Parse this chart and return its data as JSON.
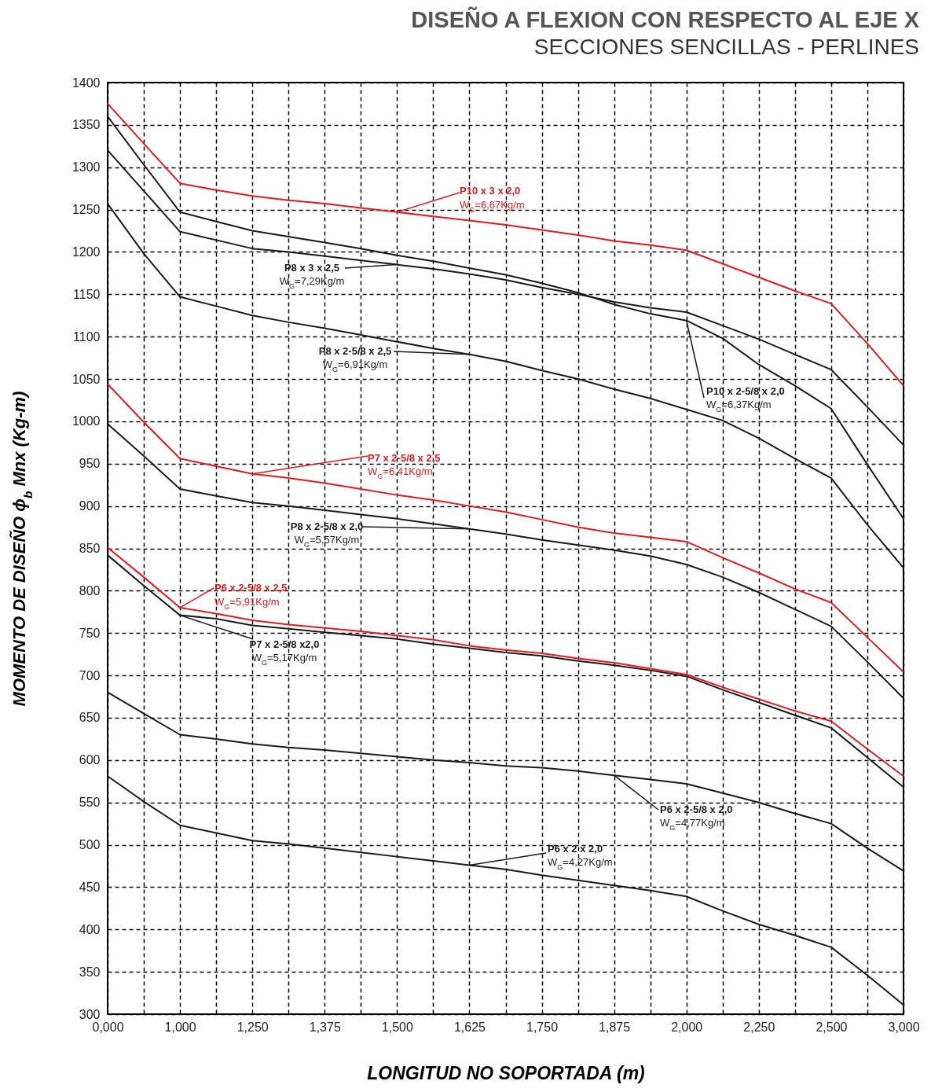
{
  "chart_data": {
    "type": "line",
    "title": "DISEÑO A FLEXION CON RESPECTO AL EJE X",
    "subtitle": "SECCIONES SENCILLAS - PERLINES",
    "xlabel": "LONGITUD NO SOPORTADA (m)",
    "ylabel": "MOMENTO DE DISEÑO   ϕ$_{b}$ Mnx (Kg-m)",
    "categories": [
      "0,000",
      null,
      "1,000",
      null,
      "1,250",
      null,
      "1,375",
      null,
      "1,500",
      null,
      "1,625",
      null,
      "1,750",
      null,
      "1,875",
      null,
      "2,000",
      null,
      "2,250",
      null,
      "2,500",
      null,
      "3,000"
    ],
    "series": [
      {
        "name": "P10 x 3 x 2,0",
        "color": "#e8191c",
        "values": [
          1375,
          1328,
          1281,
          1273,
          1266,
          1261,
          1257,
          1252,
          1247,
          1242,
          1237,
          1232,
          1226,
          1220,
          1213,
          1208,
          1202,
          1186,
          1170,
          1154,
          1139,
          1092,
          1042
        ]
      },
      {
        "name": "P10 x 2-5/8 x 2,0",
        "color": "#1a1a1a",
        "values": [
          1360,
          1303,
          1247,
          1236,
          1225,
          1218,
          1211,
          1204,
          1196,
          1189,
          1181,
          1173,
          1163,
          1152,
          1138,
          1127,
          1119,
          1098,
          1067,
          1042,
          1015,
          949,
          885
        ]
      },
      {
        "name": "P8 x 3 x 2,5",
        "color": "#1a1a1a",
        "values": [
          1320,
          1272,
          1224,
          1214,
          1204,
          1200,
          1195,
          1190,
          1185,
          1180,
          1174,
          1167,
          1158,
          1150,
          1141,
          1134,
          1129,
          1113,
          1097,
          1079,
          1061,
          1017,
          972
        ]
      },
      {
        "name": "P8 x 2-5/8 x 2,5",
        "color": "#1a1a1a",
        "values": [
          1257,
          1198,
          1147,
          1136,
          1125,
          1117,
          1110,
          1102,
          1094,
          1086,
          1079,
          1071,
          1060,
          1050,
          1038,
          1027,
          1014,
          1001,
          980,
          956,
          933,
          878,
          827
        ]
      },
      {
        "name": "P7 x 2-5/8 x 2,5",
        "color": "#e8191c",
        "values": [
          1044,
          999,
          956,
          947,
          938,
          933,
          927,
          920,
          913,
          907,
          900,
          893,
          884,
          875,
          868,
          863,
          858,
          839,
          821,
          802,
          786,
          745,
          704
        ]
      },
      {
        "name": "P8 x 2-5/8 x 2,0",
        "color": "#1a1a1a",
        "values": [
          997,
          959,
          920,
          912,
          904,
          900,
          895,
          890,
          885,
          879,
          873,
          867,
          860,
          854,
          848,
          841,
          831,
          816,
          798,
          778,
          758,
          716,
          673
        ]
      },
      {
        "name": "P6 x 2-5/8 x 2,5",
        "color": "#e8191c",
        "values": [
          851,
          816,
          780,
          773,
          765,
          760,
          756,
          752,
          747,
          742,
          735,
          730,
          726,
          720,
          715,
          708,
          701,
          686,
          672,
          658,
          646,
          613,
          581
        ]
      },
      {
        "name": "P7 x 2-5/8 x2,0",
        "color": "#1a1a1a",
        "values": [
          842,
          806,
          771,
          767,
          759,
          755,
          751,
          747,
          743,
          737,
          732,
          727,
          723,
          717,
          712,
          706,
          699,
          683,
          668,
          653,
          638,
          603,
          568
        ]
      },
      {
        "name": "P6 x 2-5/8 x 2,0",
        "color": "#1a1a1a",
        "values": [
          680,
          655,
          630,
          625,
          619,
          615,
          612,
          608,
          604,
          600,
          597,
          593,
          591,
          587,
          582,
          577,
          572,
          561,
          550,
          537,
          525,
          496,
          469
        ]
      },
      {
        "name": "P6 x 2 x 2,0",
        "color": "#1a1a1a",
        "values": [
          581,
          551,
          523,
          514,
          505,
          501,
          496,
          491,
          486,
          481,
          476,
          471,
          464,
          458,
          452,
          446,
          439,
          422,
          406,
          393,
          379,
          346,
          311
        ]
      }
    ],
    "annotations": [
      {
        "text": "W$_{G}$=6,67Kg/m",
        "x": "1,500",
        "y": 1247
      },
      {
        "text": "W$_{G}$=6,37Kg/m",
        "x": "2,000",
        "y": 1119
      },
      {
        "text": "W$_{G}$=7,29Kg/m",
        "x": "1,500",
        "y": 1185
      },
      {
        "text": "W$_{G}$=6,91Kg/m",
        "x": "1,625",
        "y": 1079
      },
      {
        "text": "W$_{G}$=6,41Kg/m",
        "x": "1,250",
        "y": 938
      },
      {
        "text": "W$_{G}$=5,57Kg/m",
        "x": "1,625",
        "y": 873
      },
      {
        "text": "W$_{G}$=5,91Kg/m",
        "x": "1,000",
        "y": 780
      },
      {
        "text": "W$_{G}$=5,17Kg/m",
        "x": "1,000",
        "y": 771
      },
      {
        "text": "W$_{G}$=4,77Kg/m",
        "x": "1,875",
        "y": 582
      },
      {
        "text": "W$_{G}$=4,27Kg/m",
        "x": "1,625",
        "y": 476
      }
    ],
    "ylim": [
      300,
      1400
    ],
    "yticks": [
      300,
      350,
      400,
      450,
      500,
      550,
      600,
      650,
      700,
      750,
      800,
      850,
      900,
      950,
      1000,
      1050,
      1100,
      1150,
      1200,
      1250,
      1300,
      1350,
      1400
    ],
    "grid": true,
    "legend": false
  }
}
